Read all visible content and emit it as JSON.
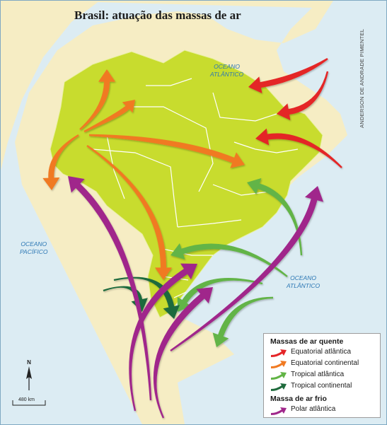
{
  "title": "Brasil: atuação das massas de ar",
  "credit": "ANDERSON DE ANDRADE PIMENTEL",
  "oceans": {
    "atlantic_north": [
      "OCEANO",
      "ATLÂNTICO"
    ],
    "atlantic_south": [
      "OCEANO",
      "ATLÂNTICO"
    ],
    "pacific": [
      "OCEANO",
      "PACÍFICO"
    ]
  },
  "legend": {
    "warm_heading": "Massas de ar quente",
    "warm_items": [
      {
        "label": "Equatorial atlântica",
        "color": "#e42528"
      },
      {
        "label": "Equatorial continental",
        "color": "#f07a22"
      },
      {
        "label": "Tropical atlântica",
        "color": "#62b446"
      },
      {
        "label": "Tropical continental",
        "color": "#1f6b3d"
      }
    ],
    "cold_heading": "Massa de ar frio",
    "cold_items": [
      {
        "label": "Polar atlântica",
        "color": "#a0278b"
      }
    ]
  },
  "compass_label": "N",
  "scale_label": "480 km",
  "map_colors": {
    "ocean": "#dcecf3",
    "continent": "#f6edc4",
    "brazil": "#c8dc2e",
    "border": "#ffffff"
  }
}
